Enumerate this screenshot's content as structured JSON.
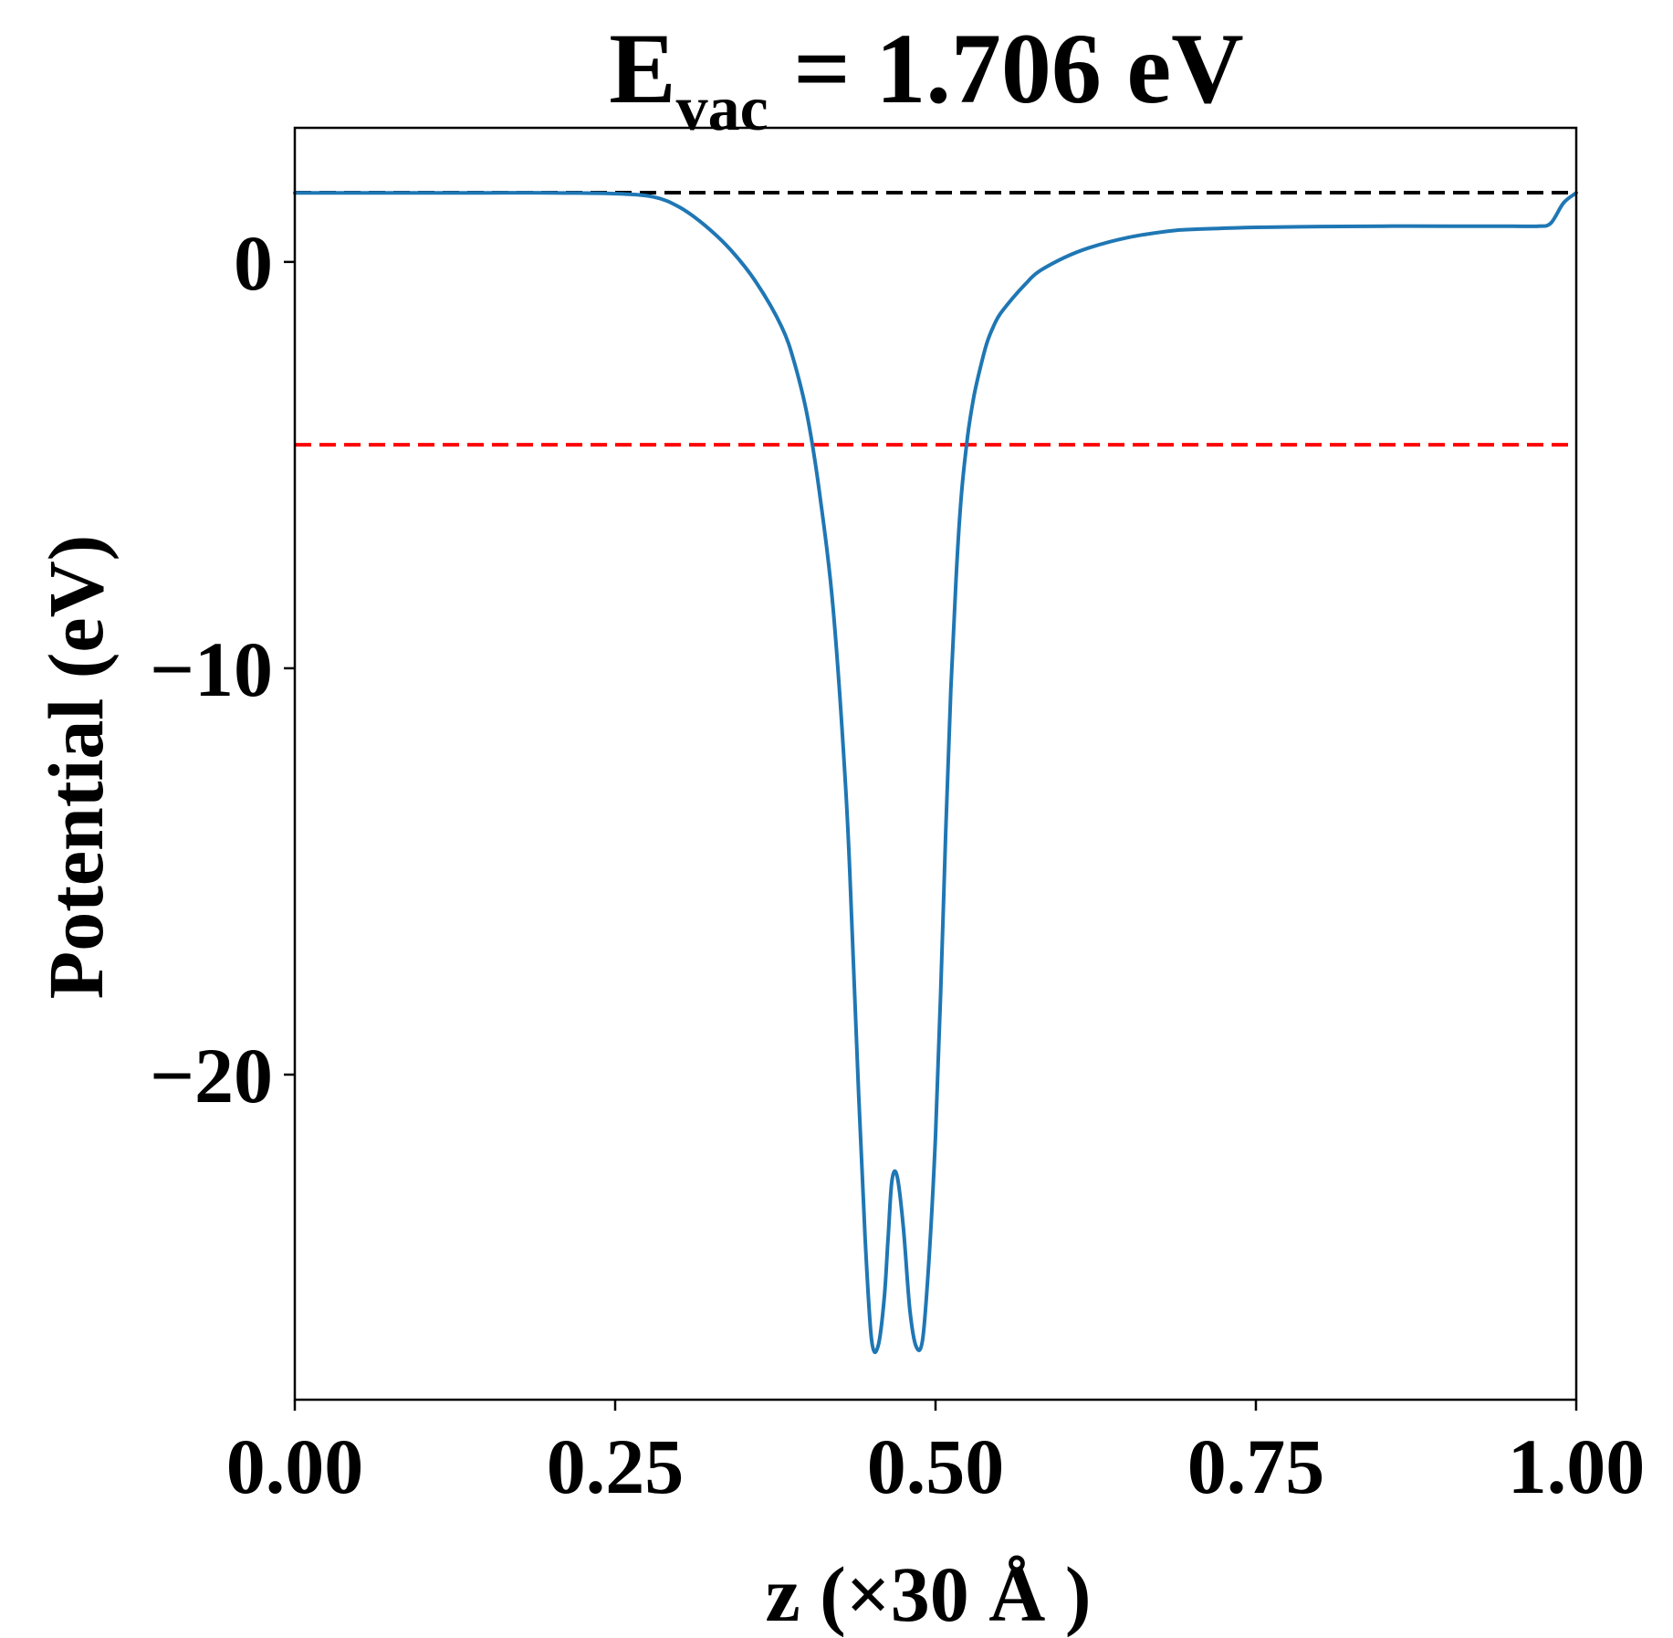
{
  "chart_data": {
    "type": "line",
    "title": {
      "main": "E",
      "subscript": "vac",
      "rest": " = 1.706 eV"
    },
    "xlabel": "z (×30 Å )",
    "ylabel": "Potential (eV)",
    "xlim": [
      0.0,
      1.0
    ],
    "ylim": [
      -28.0,
      3.3
    ],
    "xticks": [
      {
        "value": 0.0,
        "label": "0.00"
      },
      {
        "value": 0.25,
        "label": "0.25"
      },
      {
        "value": 0.5,
        "label": "0.50"
      },
      {
        "value": 0.75,
        "label": "0.75"
      },
      {
        "value": 1.0,
        "label": "1.00"
      }
    ],
    "yticks": [
      {
        "value": 0,
        "label": "0"
      },
      {
        "value": -10,
        "label": "−10"
      },
      {
        "value": -20,
        "label": "−20"
      }
    ],
    "grid": false,
    "legend": "none",
    "hlines": [
      {
        "y": 1.706,
        "color": "#000000",
        "style": "dashed"
      },
      {
        "y": -4.5,
        "color": "#ff0000",
        "style": "dashed"
      }
    ],
    "series": [
      {
        "color": "#1f77b4",
        "x": [
          0.0,
          0.05,
          0.1,
          0.15,
          0.2,
          0.25,
          0.28,
          0.3,
          0.32,
          0.34,
          0.36,
          0.38,
          0.39,
          0.4,
          0.41,
          0.42,
          0.43,
          0.435,
          0.44,
          0.445,
          0.45,
          0.455,
          0.46,
          0.463,
          0.466,
          0.47,
          0.475,
          0.48,
          0.485,
          0.49,
          0.495,
          0.5,
          0.504,
          0.508,
          0.512,
          0.516,
          0.52,
          0.525,
          0.53,
          0.535,
          0.54,
          0.545,
          0.55,
          0.56,
          0.57,
          0.58,
          0.6,
          0.62,
          0.65,
          0.68,
          0.7,
          0.75,
          0.8,
          0.85,
          0.9,
          0.95,
          0.97,
          0.98,
          0.99,
          1.0
        ],
        "y": [
          1.7,
          1.7,
          1.7,
          1.7,
          1.7,
          1.68,
          1.6,
          1.35,
          0.9,
          0.3,
          -0.5,
          -1.6,
          -2.5,
          -3.8,
          -5.8,
          -8.5,
          -13.0,
          -16.5,
          -20.5,
          -24.0,
          -26.5,
          -26.7,
          -25.5,
          -24.0,
          -22.6,
          -22.5,
          -23.8,
          -25.8,
          -26.7,
          -26.5,
          -24.5,
          -21.5,
          -18.0,
          -14.0,
          -10.5,
          -7.8,
          -5.8,
          -4.3,
          -3.3,
          -2.6,
          -2.0,
          -1.6,
          -1.3,
          -0.9,
          -0.55,
          -0.25,
          0.1,
          0.35,
          0.6,
          0.75,
          0.8,
          0.85,
          0.87,
          0.88,
          0.88,
          0.88,
          0.88,
          0.95,
          1.45,
          1.7
        ]
      }
    ]
  }
}
